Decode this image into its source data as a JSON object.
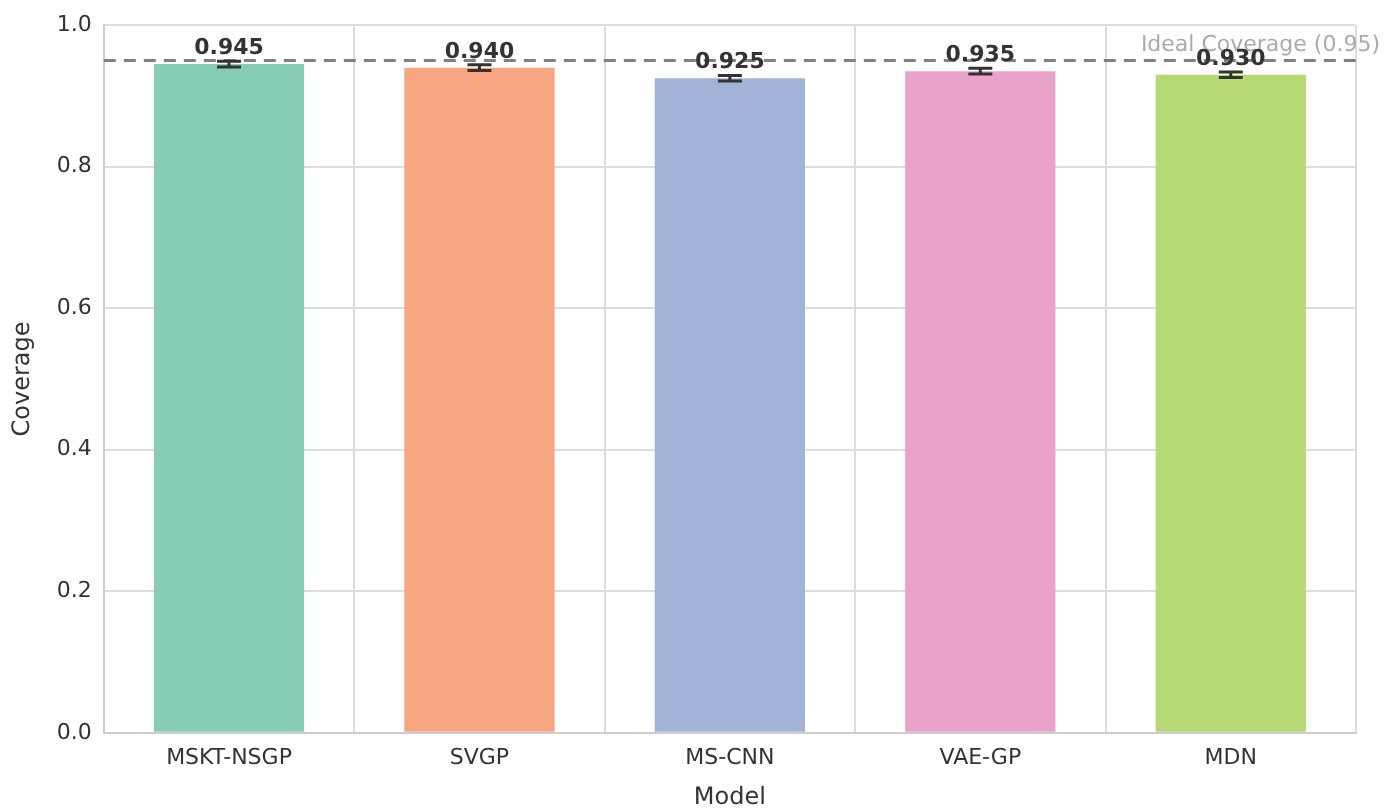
{
  "chart_data": {
    "type": "bar",
    "xlabel": "Model",
    "ylabel": "Coverage",
    "categories": [
      "MSKT-NSGP",
      "SVGP",
      "MS-CNN",
      "VAE-GP",
      "MDN"
    ],
    "values": [
      0.945,
      0.94,
      0.925,
      0.935,
      0.93
    ],
    "colors": [
      "#86cdb6",
      "#f8a582",
      "#a3b3d8",
      "#e9a3c9",
      "#b6d975"
    ],
    "errors": [
      0.004,
      0.004,
      0.004,
      0.004,
      0.004
    ],
    "ylim": [
      0,
      1
    ],
    "yticks": [
      {
        "value": 0,
        "label": "0.0"
      },
      {
        "value": 0.2,
        "label": "0.2"
      },
      {
        "value": 0.4,
        "label": "0.4"
      },
      {
        "value": 0.6,
        "label": "0.6"
      },
      {
        "value": 0.8,
        "label": "0.8"
      },
      {
        "value": 1,
        "label": "1.0"
      }
    ],
    "grid": true,
    "value_labels": [
      "0.945",
      "0.940",
      "0.925",
      "0.935",
      "0.930"
    ],
    "ref_lines": [
      {
        "axis": "y",
        "value": 0.95,
        "label": "Ideal Coverage (0.95)",
        "color": "#808080",
        "line_style": "dashed"
      }
    ]
  }
}
